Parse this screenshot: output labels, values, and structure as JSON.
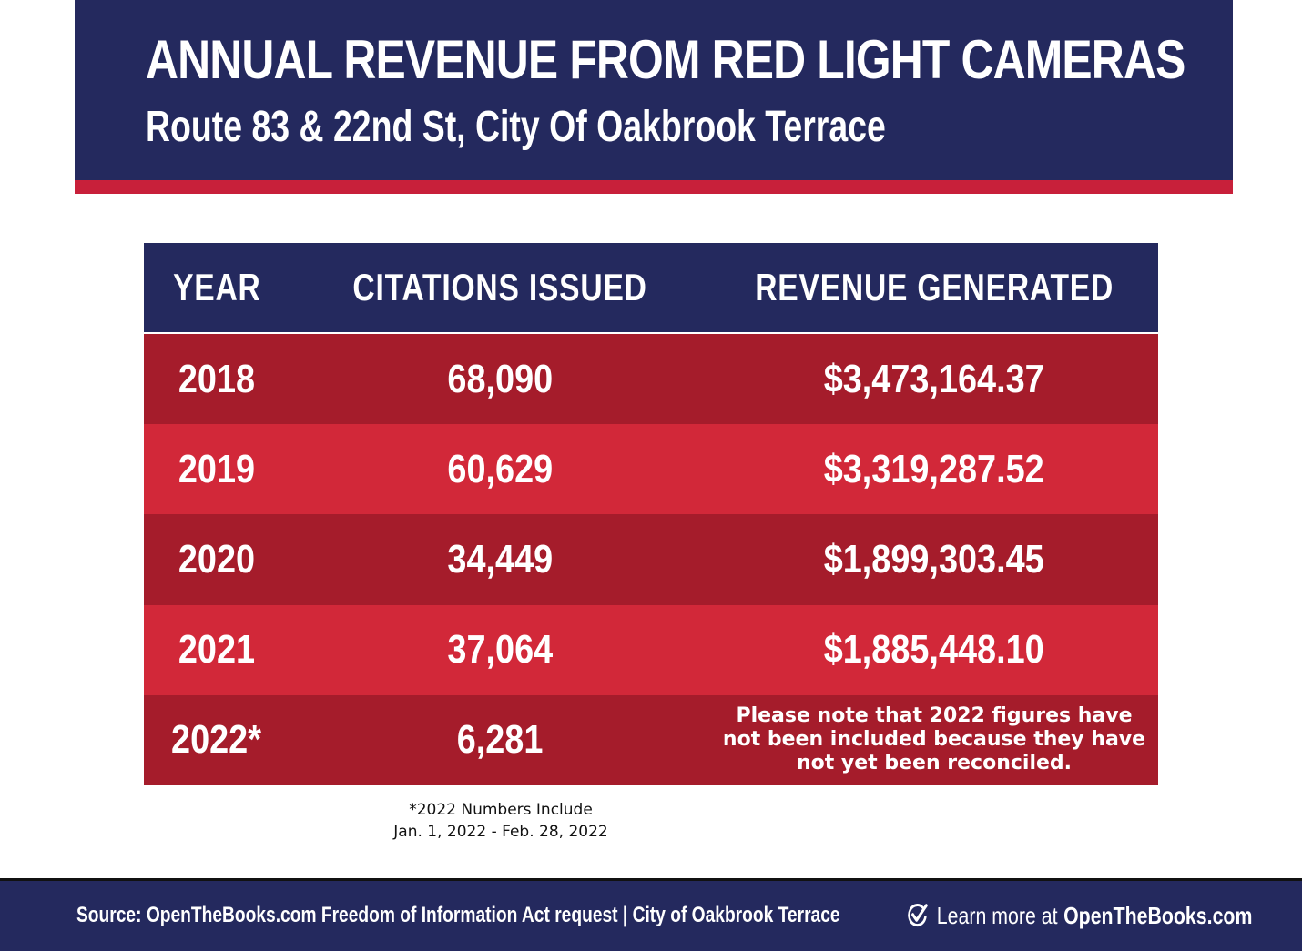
{
  "header": {
    "title": "ANNUAL REVENUE FROM RED LIGHT CAMERAS",
    "subtitle": "Route 83 & 22nd St, City Of Oakbrook Terrace"
  },
  "chart_data": {
    "type": "table",
    "title": "ANNUAL REVENUE FROM RED LIGHT CAMERAS",
    "subtitle": "Route 83 & 22nd St, City Of Oakbrook Terrace",
    "columns": [
      "YEAR",
      "CITATIONS ISSUED",
      "REVENUE GENERATED"
    ],
    "rows": [
      {
        "year": "2018",
        "citations": "68,090",
        "revenue": "$3,473,164.37"
      },
      {
        "year": "2019",
        "citations": "60,629",
        "revenue": "$3,319,287.52"
      },
      {
        "year": "2020",
        "citations": "34,449",
        "revenue": "$1,899,303.45"
      },
      {
        "year": "2021",
        "citations": "37,064",
        "revenue": "$1,885,448.10"
      },
      {
        "year": "2022*",
        "citations": "6,281",
        "revenue": "Please note that 2022 figures have not been included because they have not yet been reconciled."
      }
    ],
    "footnote": {
      "line1": "*2022 Numbers Include",
      "line2": "Jan. 1, 2022 - Feb. 28, 2022"
    }
  },
  "footer": {
    "source": "Source: OpenTheBooks.com Freedom of Information Act request | City of Oakbrook Terrace",
    "learn_prefix": "Learn more at",
    "learn_site": "OpenTheBooks.com"
  },
  "colors": {
    "navy": "#24295e",
    "red_dark": "#a51c2b",
    "red_light": "#d22839",
    "stripe": "#c8203a"
  },
  "icons": {
    "footer_icon": "check-icon"
  }
}
